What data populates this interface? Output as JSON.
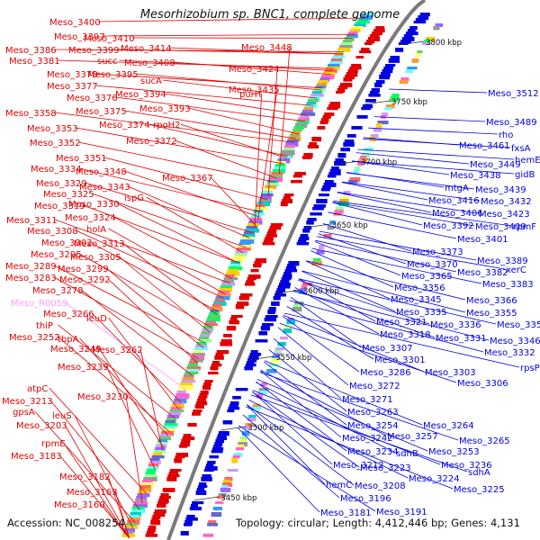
{
  "title": "Mesorhizobium sp. BNC1, complete genome",
  "footer": {
    "accession": "Accession: NC_008254",
    "summary": "Topology: circular; Length: 4,412,446 bp; Genes: 4,131"
  },
  "colors": {
    "forward": "#e00000",
    "reverse": "#0000e0",
    "rna": "#ff99ff",
    "backbone": "#7a7a7a"
  },
  "scale_labels": [
    "3800 kbp",
    "3750 kbp",
    "3700 kbp",
    "3650 kbp",
    "3600 kbp",
    "3550 kbp",
    "3500 kbp",
    "3450 kbp"
  ],
  "left_labels": [
    "Meso_3400",
    "Meso_3397",
    "Meso_3410",
    "Meso_3386",
    "Meso_3399",
    "Meso_3414",
    "Meso_3381",
    "succ",
    "Meso_3408",
    "Meso_3378",
    "Meso_3395",
    "sucA",
    "Meso_3377",
    "Meso_3394",
    "Meso_3376",
    "Meso_3393",
    "Meso_3375",
    "Meso_3358",
    "Meso_3374",
    "rpoH2",
    "Meso_3353",
    "Meso_3372",
    "Meso_3352",
    "Meso_3351",
    "Meso_3334",
    "Meso_3348",
    "Meso_3367",
    "Meso_3329",
    "Meso_3343",
    "Meso_3325",
    "ispG",
    "Meso_3319",
    "Meso_3330",
    "Meso_3324",
    "Meso_3311",
    "holA",
    "Meso_3308",
    "Meso_3302",
    "Meso_3313",
    "Meso_3295",
    "Meso_3305",
    "Meso_3289",
    "Meso_3299",
    "Meso_3283",
    "Meso_3292",
    "Meso_3278",
    "Meso_R0059",
    "Meso_3266",
    "leuD",
    "thiP",
    "Meso_3252",
    "tbpA",
    "Meso_3249",
    "Meso_3262",
    "Meso_3239",
    "atpC",
    "Meso_3230",
    "Meso_3213",
    "gpsA",
    "leuS",
    "Meso_3203",
    "rpmE",
    "Meso_3183",
    "Meso_3182",
    "Meso_3163",
    "Meso_3160",
    "Meso_3448",
    "Meso_3424",
    "Meso_3435",
    "purH"
  ],
  "right_labels": [
    "Meso_3512",
    "Meso_3489",
    "rho",
    "Meso_3461",
    "fxsA",
    "hemE",
    "Meso_3449",
    "gidB",
    "Meso_3438",
    "mtgA",
    "Meso_3439",
    "Meso_3416",
    "Meso_3432",
    "Meso_3406",
    "Meso_3423",
    "Meso_3392",
    "Meso_3409",
    "rpmF",
    "Meso_3401",
    "Meso_3373",
    "Meso_3389",
    "Meso_3370",
    "Meso_3382",
    "xerC",
    "Meso_3365",
    "Meso_3383",
    "Meso_3356",
    "Meso_3345",
    "Meso_3366",
    "Meso_3335",
    "Meso_3355",
    "Meso_3321",
    "Meso_3336",
    "Meso_3357",
    "Meso_3318",
    "Meso_3331",
    "Meso_3346",
    "Meso_3307",
    "Meso_3332",
    "Meso_3301",
    "rpsP",
    "Meso_3286",
    "Meso_3303",
    "Meso_3272",
    "Meso_3306",
    "Meso_3271",
    "Meso_3263",
    "Meso_3254",
    "Meso_3264",
    "Meso_3257",
    "Meso_3242",
    "Meso_3265",
    "Meso_3234",
    "sdhB",
    "Meso_3253",
    "Meso_3212",
    "Meso_3236",
    "Meso_3223",
    "sdhA",
    "Meso_3224",
    "hemC",
    "Meso_3208",
    "Meso_3225",
    "Meso_3196",
    "Meso_3181",
    "Meso_3191"
  ]
}
